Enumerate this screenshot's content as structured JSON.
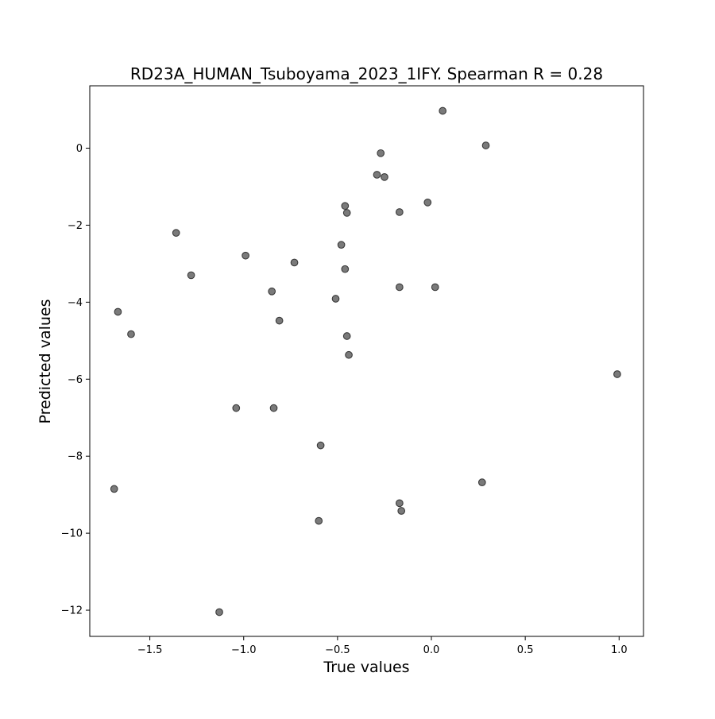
{
  "chart_data": {
    "type": "scatter",
    "title": "RD23A_HUMAN_Tsuboyama_2023_1IFY. Spearman R = 0.28",
    "xlabel": "True values",
    "ylabel": "Predicted values",
    "xlim": [
      -1.82,
      1.13
    ],
    "ylim": [
      -12.68,
      1.62
    ],
    "xticks": [
      -1.5,
      -1.0,
      -0.5,
      0.0,
      0.5,
      1.0
    ],
    "xtick_labels": [
      "−1.5",
      "−1.0",
      "−0.5",
      "0.0",
      "0.5",
      "1.0"
    ],
    "yticks": [
      0,
      -2,
      -4,
      -6,
      -8,
      -10,
      -12
    ],
    "ytick_labels": [
      "0",
      "−2",
      "−4",
      "−6",
      "−8",
      "−10",
      "−12"
    ],
    "grid": false,
    "colors": {
      "marker_fill": "#7a7a7a",
      "marker_edge": "#3a3a3a",
      "axis": "#000000"
    },
    "points": [
      {
        "x": 0.06,
        "y": 0.97
      },
      {
        "x": 0.29,
        "y": 0.07
      },
      {
        "x": -0.27,
        "y": -0.13
      },
      {
        "x": -0.29,
        "y": -0.69
      },
      {
        "x": -0.25,
        "y": -0.75
      },
      {
        "x": -0.02,
        "y": -1.41
      },
      {
        "x": -0.46,
        "y": -1.5
      },
      {
        "x": -0.45,
        "y": -1.68
      },
      {
        "x": -0.17,
        "y": -1.66
      },
      {
        "x": -1.36,
        "y": -2.2
      },
      {
        "x": -0.48,
        "y": -2.51
      },
      {
        "x": -0.99,
        "y": -2.79
      },
      {
        "x": -0.73,
        "y": -2.97
      },
      {
        "x": -0.46,
        "y": -3.14
      },
      {
        "x": -1.28,
        "y": -3.3
      },
      {
        "x": -0.17,
        "y": -3.61
      },
      {
        "x": 0.02,
        "y": -3.61
      },
      {
        "x": -0.85,
        "y": -3.72
      },
      {
        "x": -0.51,
        "y": -3.91
      },
      {
        "x": -1.67,
        "y": -4.25
      },
      {
        "x": -0.81,
        "y": -4.48
      },
      {
        "x": -1.6,
        "y": -4.83
      },
      {
        "x": -0.45,
        "y": -4.88
      },
      {
        "x": -0.44,
        "y": -5.37
      },
      {
        "x": 0.99,
        "y": -5.87
      },
      {
        "x": -1.04,
        "y": -6.75
      },
      {
        "x": -0.84,
        "y": -6.75
      },
      {
        "x": -0.59,
        "y": -7.72
      },
      {
        "x": 0.27,
        "y": -8.68
      },
      {
        "x": -1.69,
        "y": -8.85
      },
      {
        "x": -0.17,
        "y": -9.22
      },
      {
        "x": -0.16,
        "y": -9.42
      },
      {
        "x": -0.6,
        "y": -9.68
      },
      {
        "x": -1.13,
        "y": -12.05
      }
    ]
  }
}
